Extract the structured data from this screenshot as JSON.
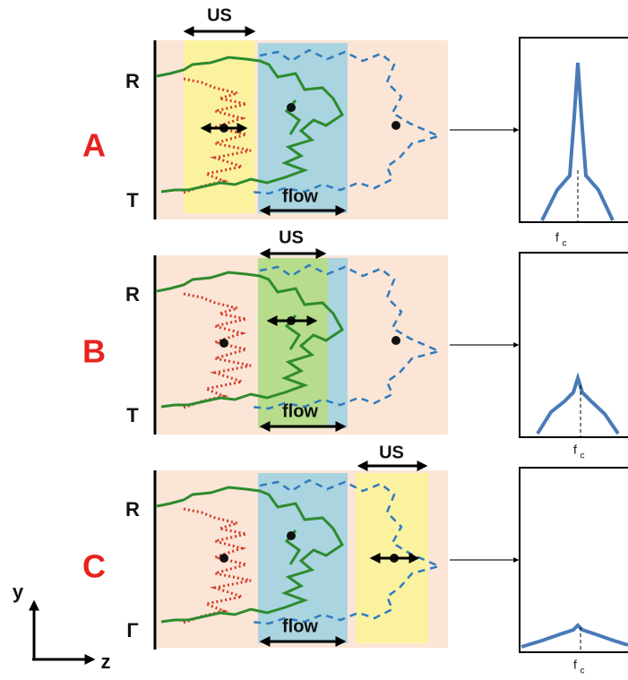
{
  "panels": [
    {
      "label": "A",
      "us": "US",
      "flow": "flow",
      "top": "R",
      "bottom": "T",
      "freq": {
        "main": "f",
        "sub": "c"
      }
    },
    {
      "label": "B",
      "us": "US",
      "flow": "flow",
      "top": "R",
      "bottom": "T",
      "freq": {
        "main": "f",
        "sub": "c"
      }
    },
    {
      "label": "C",
      "us": "US",
      "flow": "flow",
      "top": "R",
      "bottom": "Γ",
      "freq": {
        "main": "f",
        "sub": "c"
      }
    }
  ],
  "axes": {
    "y": "y",
    "z": "z"
  }
}
